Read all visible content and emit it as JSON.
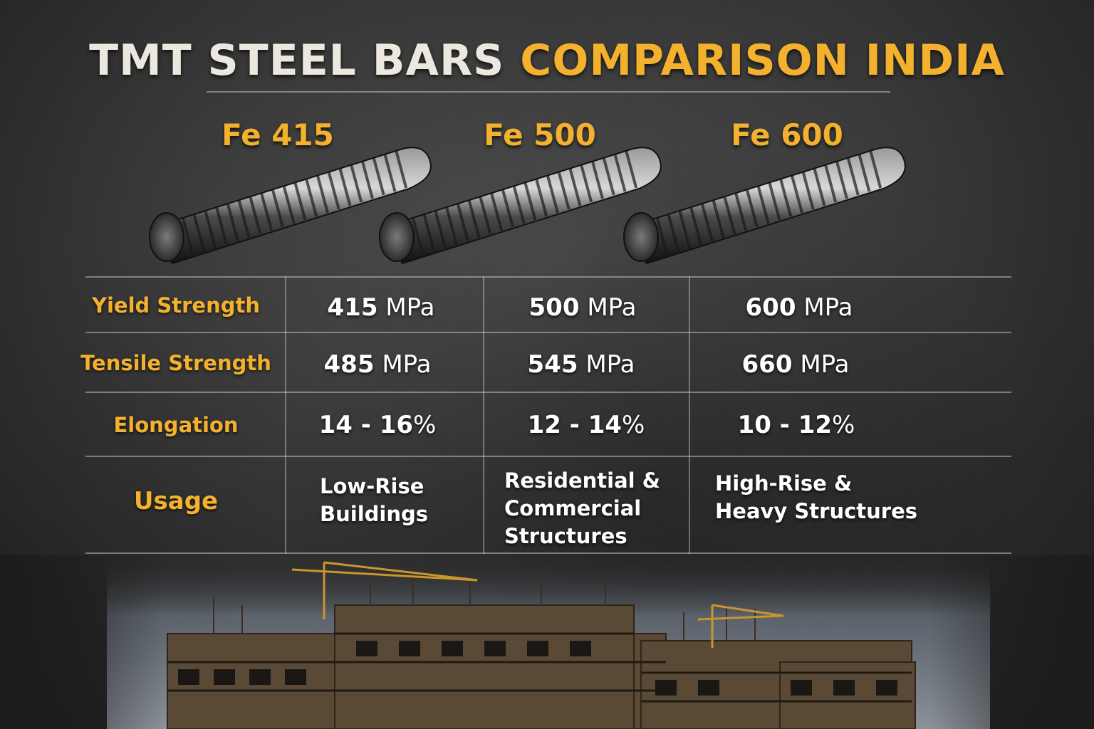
{
  "title": {
    "part1": "TMT STEEL BARS",
    "part2": "COMPARISON INDIA"
  },
  "grades": [
    "Fe 415",
    "Fe 500",
    "Fe 600"
  ],
  "rows": [
    {
      "label": "Yield Strength",
      "values": [
        {
          "num": "415",
          "unit": "MPa"
        },
        {
          "num": "500",
          "unit": "MPa"
        },
        {
          "num": "600",
          "unit": "MPa"
        }
      ]
    },
    {
      "label": "Tensile Strength",
      "values": [
        {
          "num": "485",
          "unit": "MPa"
        },
        {
          "num": "545",
          "unit": "MPa"
        },
        {
          "num": "660",
          "unit": "MPa"
        }
      ]
    },
    {
      "label": "Elongation",
      "values": [
        {
          "num": "14 - 16",
          "unit": "%"
        },
        {
          "num": "12 - 14",
          "unit": "%"
        },
        {
          "num": "10 - 12",
          "unit": "%"
        }
      ]
    }
  ],
  "usage": {
    "label": "Usage",
    "values": [
      [
        "Low-Rise",
        "Buildings"
      ],
      [
        "Residential &",
        "Commercial",
        "Structures"
      ],
      [
        "High-Rise &",
        "Heavy Structures"
      ]
    ]
  },
  "colors": {
    "accent": "#f3b12d",
    "text": "#ffffff",
    "title_white": "#ece8df"
  },
  "icons": [
    "tmt-rebar-icon",
    "construction-site-illustration"
  ]
}
